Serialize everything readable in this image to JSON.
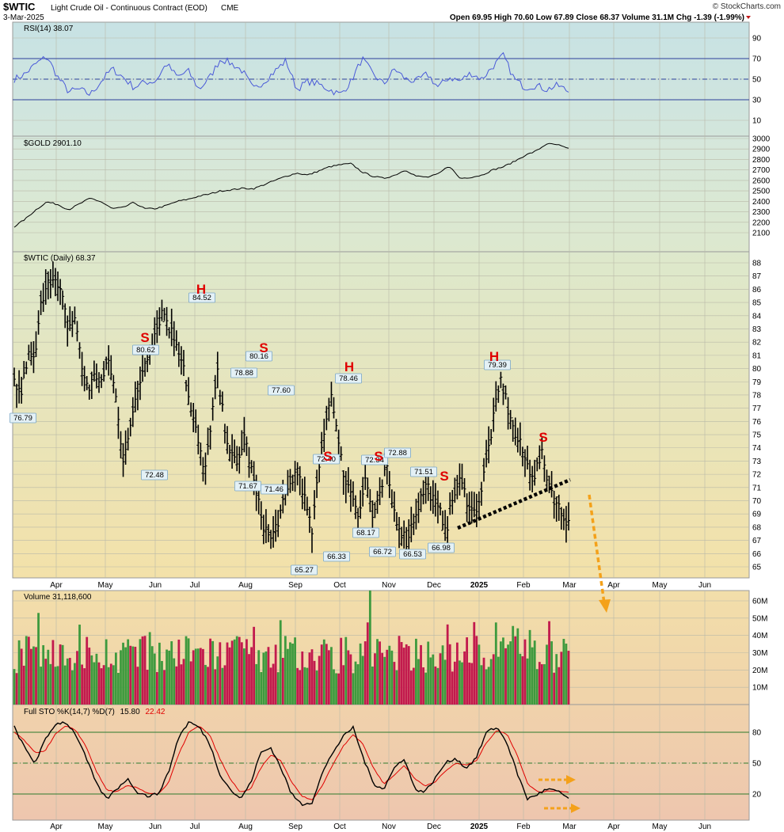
{
  "header": {
    "symbol": "$WTIC",
    "name": "Light Crude Oil - Continuous Contract (EOD)",
    "exchange": "CME",
    "date": "3-Mar-2025",
    "ohlc_text": "Open 69.95  High 70.60  Low 67.89  Close 68.37  Volume 31.1M  Chg -1.39 (-1.99%)",
    "watermark": "© StockCharts.com"
  },
  "x_axis": {
    "months": [
      "Apr",
      "May",
      "Jun",
      "Jul",
      "Aug",
      "Sep",
      "Oct",
      "Nov",
      "Dec",
      "2025",
      "Feb",
      "Mar",
      "Apr",
      "May",
      "Jun"
    ],
    "bold_month": "2025"
  },
  "colors": {
    "price": "#000000",
    "rsi": "#4a5ad8",
    "annotation_red": "#e00000",
    "arrow_orange": "#f4a11a",
    "vol_up": "#3e9a3e",
    "vol_down": "#c21a4d",
    "sto_k": "#000000",
    "sto_d": "#e00000",
    "ref_line": "#2c3f9a",
    "sto_ref": "#2d7a2d"
  },
  "chart_data": [
    {
      "id": "rsi",
      "type": "line",
      "title": "RSI(14) 38.07",
      "ylim": [
        0,
        100
      ],
      "yticks": [
        10,
        30,
        50,
        70,
        90
      ],
      "ref_lines": [
        30,
        50,
        70
      ],
      "months": [
        "Apr",
        "May",
        "Jun",
        "Jul",
        "Aug",
        "Sep",
        "Oct",
        "Nov",
        "Dec",
        "Jan",
        "Feb",
        "Mar"
      ],
      "series": [
        {
          "values": [
            50,
            55,
            65,
            72,
            52,
            38,
            40,
            35,
            48,
            60,
            52,
            42,
            47,
            48,
            65,
            52,
            58,
            40,
            52,
            70,
            65,
            58,
            40,
            48,
            58,
            68,
            40,
            48,
            45,
            40,
            35,
            48,
            70,
            55,
            45,
            60,
            50,
            48,
            55,
            42,
            52,
            48,
            56,
            50,
            62,
            73,
            50,
            42,
            44,
            40,
            44,
            38
          ]
        }
      ],
      "last": 38.07
    },
    {
      "id": "gold",
      "type": "line",
      "title": "$GOLD 2901.10",
      "ylim": [
        2050,
        3050
      ],
      "yticks": [
        2100,
        2200,
        2300,
        2400,
        2500,
        2600,
        2700,
        2800,
        2900,
        3000
      ],
      "series": [
        {
          "values": [
            2158,
            2230,
            2320,
            2395,
            2370,
            2320,
            2375,
            2430,
            2395,
            2330,
            2340,
            2390,
            2330,
            2330,
            2360,
            2400,
            2420,
            2450,
            2470,
            2500,
            2510,
            2525,
            2520,
            2560,
            2600,
            2640,
            2670,
            2650,
            2690,
            2730,
            2750,
            2760,
            2680,
            2640,
            2620,
            2650,
            2700,
            2640,
            2630,
            2660,
            2740,
            2620,
            2630,
            2650,
            2700,
            2730,
            2780,
            2840,
            2880,
            2950,
            2940,
            2901
          ]
        }
      ],
      "last": 2901.1
    },
    {
      "id": "wtic",
      "type": "line",
      "title": "$WTIC (Daily) 68.37",
      "ylim": [
        64,
        89
      ],
      "yticks": [
        65,
        66,
        67,
        68,
        69,
        70,
        71,
        72,
        73,
        74,
        75,
        76,
        77,
        78,
        79,
        80,
        81,
        82,
        83,
        84,
        85,
        86,
        87,
        88
      ],
      "series": [
        {
          "values": [
            79.0,
            78.0,
            81.0,
            80.5,
            85.0,
            87.0,
            86.5,
            85.5,
            83.0,
            84.0,
            80.0,
            78.5,
            79.5,
            79.0,
            80.6,
            78.0,
            73.0,
            75.5,
            77.5,
            80.0,
            81.5,
            83.0,
            84.5,
            83.0,
            82.0,
            80.5,
            77.0,
            75.0,
            72.2,
            75.0,
            79.8,
            76.0,
            73.5,
            72.5,
            75.0,
            72.5,
            70.0,
            68.0,
            67.0,
            68.5,
            70.0,
            71.5,
            72.5,
            70.0,
            67.5,
            72.0,
            76.0,
            78.3,
            74.0,
            71.5,
            70.5,
            69.0,
            71.8,
            68.8,
            70.0,
            72.6,
            69.5,
            68.0,
            66.9,
            68.5,
            70.0,
            71.3,
            70.0,
            69.0,
            68.0,
            70.5,
            71.5,
            70.0,
            69.0,
            70.5,
            73.5,
            76.5,
            79.2,
            77.0,
            75.0,
            74.0,
            72.5,
            72.0,
            73.5,
            71.5,
            70.0,
            69.0,
            68.37
          ]
        }
      ],
      "point_labels": [
        "76.79",
        "80.62",
        "72.48",
        "84.52",
        "78.88",
        "80.16",
        "71.67",
        "77.60",
        "71.46",
        "65.27",
        "72.40",
        "66.33",
        "78.46",
        "72.34",
        "68.17",
        "66.72",
        "72.88",
        "71.51",
        "66.53",
        "66.98",
        "79.39"
      ],
      "pattern_labels": [
        "S",
        "H",
        "S",
        "H",
        "S",
        "S",
        "S",
        "H",
        "S"
      ],
      "last": 68.37
    },
    {
      "id": "volume",
      "type": "bar",
      "title": "Volume 31,118,600",
      "yticks": [
        "10M",
        "20M",
        "30M",
        "40M",
        "50M",
        "60M"
      ],
      "ylim": [
        0,
        66000000
      ],
      "last": 31118600
    },
    {
      "id": "sto",
      "type": "line",
      "title": "Full STO %K(14,7) %D(7)",
      "title_k": "15.80",
      "title_d": "22.42",
      "ylim": [
        0,
        100
      ],
      "yticks": [
        20,
        50,
        80
      ],
      "ref_lines": [
        20,
        50,
        80
      ],
      "series": [
        {
          "values": [
            85,
            65,
            50,
            72,
            88,
            90,
            78,
            55,
            30,
            15,
            25,
            35,
            22,
            18,
            20,
            40,
            75,
            90,
            85,
            70,
            40,
            25,
            15,
            30,
            60,
            65,
            45,
            20,
            10,
            12,
            40,
            60,
            75,
            85,
            55,
            30,
            25,
            45,
            55,
            25,
            22,
            35,
            50,
            55,
            45,
            55,
            80,
            85,
            70,
            40,
            15,
            20,
            25,
            22,
            16
          ]
        },
        {
          "values": [
            80,
            72,
            60,
            62,
            78,
            86,
            82,
            66,
            42,
            24,
            22,
            28,
            26,
            21,
            20,
            30,
            58,
            80,
            86,
            78,
            55,
            35,
            22,
            24,
            45,
            58,
            52,
            32,
            18,
            14,
            28,
            48,
            66,
            78,
            68,
            45,
            30,
            38,
            48,
            35,
            28,
            32,
            42,
            50,
            48,
            52,
            70,
            82,
            78,
            58,
            30,
            22,
            23,
            23,
            22
          ]
        }
      ]
    }
  ]
}
